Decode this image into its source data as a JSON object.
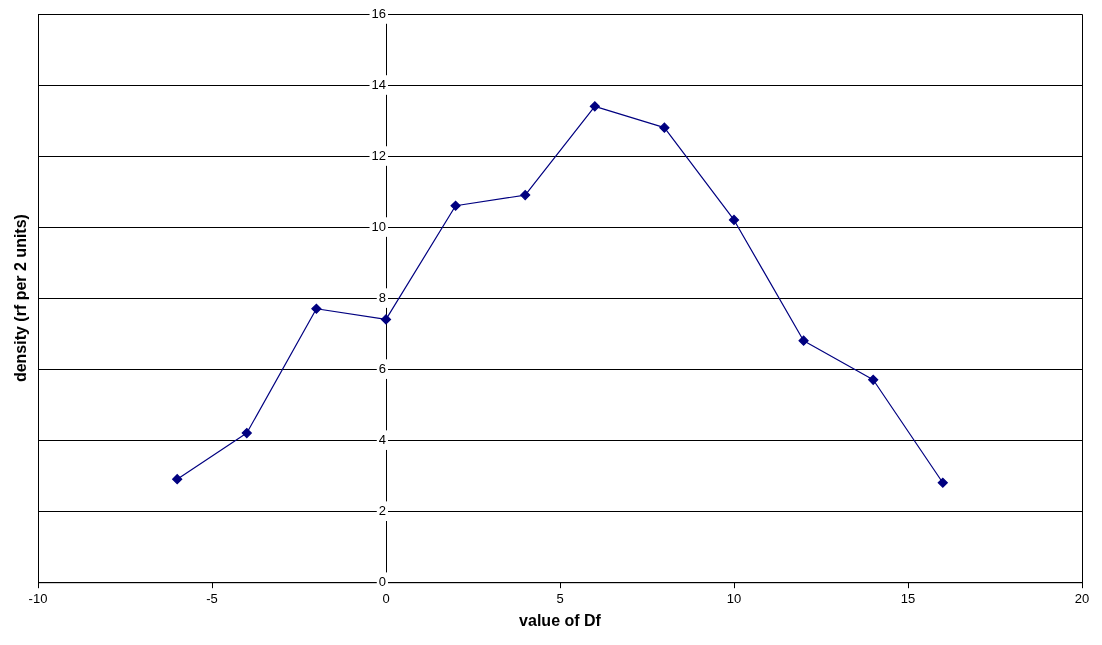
{
  "chart_data": {
    "type": "line",
    "xlabel": "value of Df",
    "ylabel": "density (rf per 2 units)",
    "x": [
      -6,
      -4,
      -2,
      0,
      2,
      4,
      6,
      8,
      10,
      12,
      14,
      16
    ],
    "series": [
      {
        "color": "#000080",
        "values": [
          2.9,
          4.2,
          7.7,
          7.4,
          10.6,
          10.9,
          13.4,
          12.8,
          10.2,
          6.8,
          5.7,
          2.8
        ]
      }
    ],
    "xlim": [
      -10,
      20
    ],
    "xticks": [
      -10,
      -5,
      0,
      5,
      10,
      15,
      20
    ],
    "ylim": [
      0,
      16
    ],
    "yticks": [
      0,
      2,
      4,
      6,
      8,
      10,
      12,
      14,
      16
    ],
    "grid": "y",
    "legend": false,
    "marker": "diamond",
    "line_style": "solid"
  }
}
